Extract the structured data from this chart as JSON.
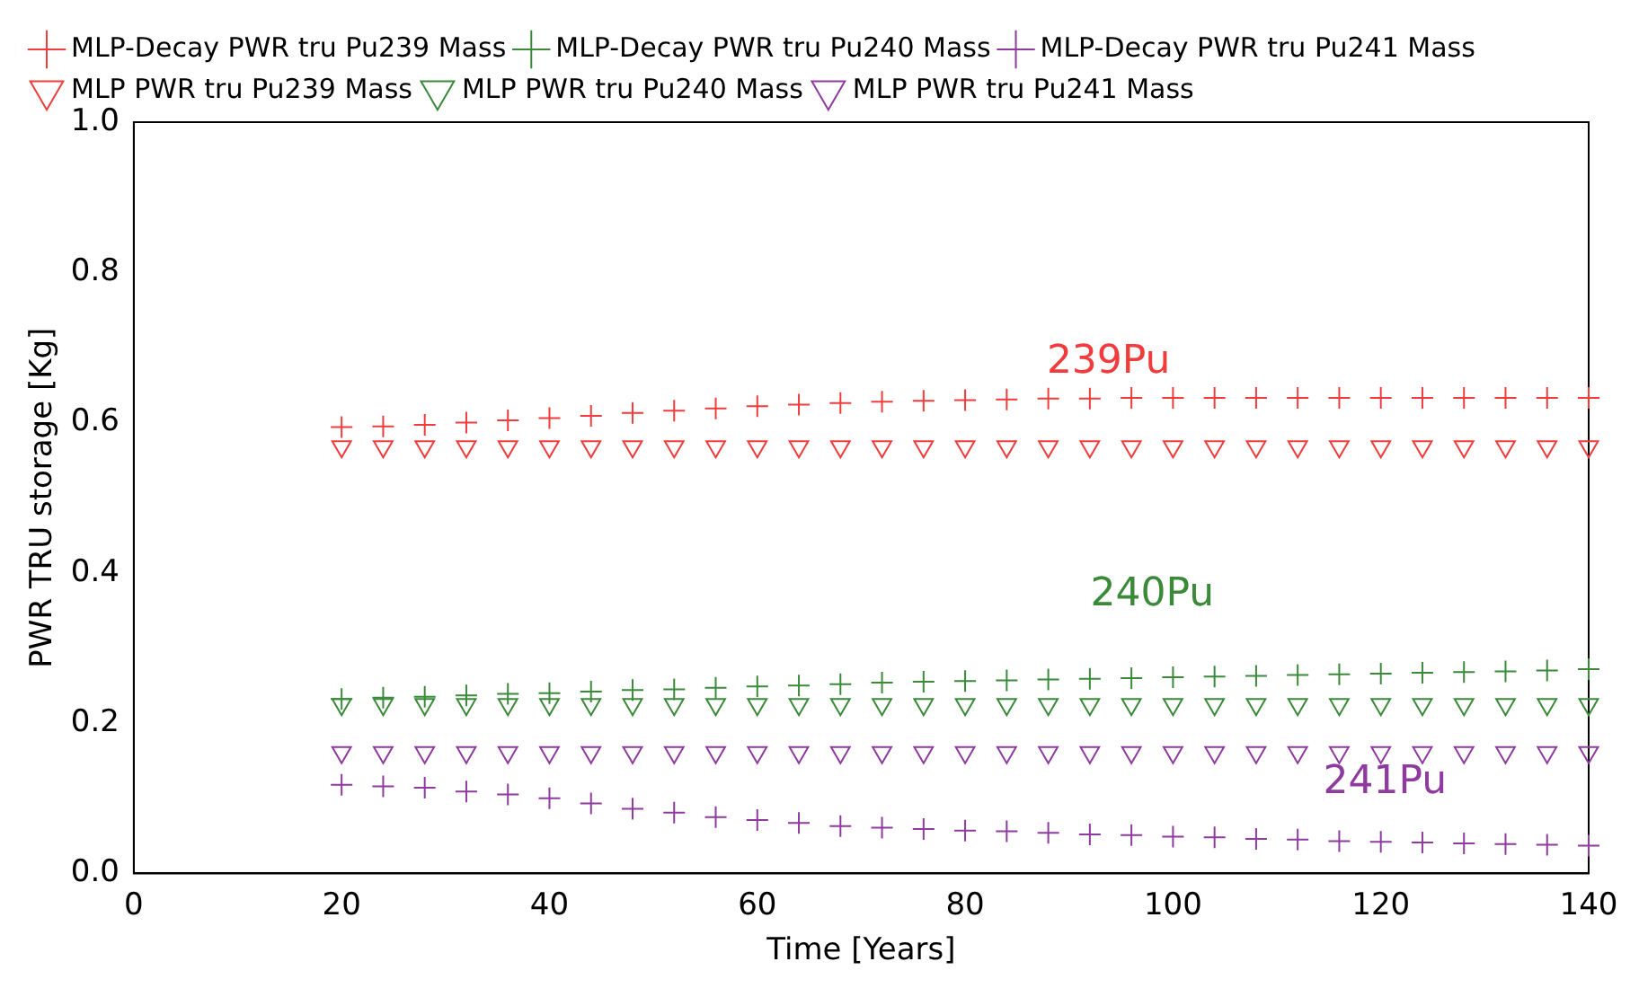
{
  "chart_data": {
    "type": "scatter",
    "xlabel": "Time [Years]",
    "ylabel": "PWR TRU storage [Kg]",
    "x": [
      20,
      24,
      28,
      32,
      36,
      40,
      44,
      48,
      52,
      56,
      60,
      64,
      68,
      72,
      76,
      80,
      84,
      88,
      92,
      96,
      100,
      104,
      108,
      112,
      116,
      120,
      124,
      128,
      132,
      136,
      140
    ],
    "xlim": [
      0,
      140
    ],
    "xticks": [
      0,
      20,
      40,
      60,
      80,
      100,
      120,
      140
    ],
    "ylim": [
      0,
      1.0
    ],
    "yticks": [
      {
        "value": 0,
        "label": "0.0"
      },
      0.2,
      0.4,
      0.6,
      0.8,
      {
        "value": 1,
        "label": "1.0"
      }
    ],
    "grid": false,
    "legend": "top left",
    "series": [
      {
        "name": "MLP-Decay PWR tru Pu239 Mass",
        "color": "#f03c3c",
        "marker": "cross",
        "values": [
          0.594,
          0.595,
          0.597,
          0.6,
          0.603,
          0.606,
          0.609,
          0.613,
          0.616,
          0.619,
          0.622,
          0.624,
          0.626,
          0.628,
          0.629,
          0.63,
          0.631,
          0.632,
          0.632,
          0.633,
          0.633,
          0.633,
          0.633,
          0.633,
          0.633,
          0.633,
          0.633,
          0.633,
          0.633,
          0.633,
          0.633
        ]
      },
      {
        "name": "MLP-Decay PWR tru Pu240 Mass",
        "color": "#3a8a3a",
        "marker": "cross",
        "values": [
          0.232,
          0.234,
          0.235,
          0.237,
          0.239,
          0.24,
          0.242,
          0.244,
          0.245,
          0.247,
          0.249,
          0.25,
          0.252,
          0.254,
          0.255,
          0.256,
          0.257,
          0.258,
          0.259,
          0.26,
          0.261,
          0.262,
          0.263,
          0.264,
          0.265,
          0.266,
          0.267,
          0.268,
          0.269,
          0.27,
          0.272
        ]
      },
      {
        "name": "MLP-Decay PWR tru Pu241 Mass",
        "color": "#8e3a9e",
        "marker": "cross",
        "values": [
          0.118,
          0.116,
          0.114,
          0.109,
          0.105,
          0.1,
          0.093,
          0.086,
          0.081,
          0.075,
          0.071,
          0.067,
          0.063,
          0.061,
          0.059,
          0.057,
          0.056,
          0.054,
          0.052,
          0.051,
          0.049,
          0.048,
          0.046,
          0.045,
          0.043,
          0.042,
          0.041,
          0.04,
          0.039,
          0.038,
          0.037
        ]
      },
      {
        "name": "MLP PWR tru Pu239 Mass",
        "color": "#f03c3c",
        "marker": "triangle",
        "values": [
          0.568,
          0.568,
          0.568,
          0.568,
          0.568,
          0.568,
          0.568,
          0.568,
          0.568,
          0.568,
          0.568,
          0.568,
          0.568,
          0.568,
          0.568,
          0.568,
          0.568,
          0.568,
          0.568,
          0.568,
          0.568,
          0.568,
          0.568,
          0.568,
          0.568,
          0.568,
          0.568,
          0.568,
          0.568,
          0.568,
          0.568
        ]
      },
      {
        "name": "MLP PWR tru Pu240 Mass",
        "color": "#3a8a3a",
        "marker": "triangle",
        "values": [
          0.225,
          0.225,
          0.225,
          0.225,
          0.225,
          0.225,
          0.225,
          0.225,
          0.225,
          0.225,
          0.225,
          0.225,
          0.225,
          0.225,
          0.225,
          0.225,
          0.225,
          0.225,
          0.225,
          0.225,
          0.225,
          0.225,
          0.225,
          0.225,
          0.225,
          0.225,
          0.225,
          0.225,
          0.225,
          0.225,
          0.225
        ]
      },
      {
        "name": "MLP PWR tru Pu241 Mass",
        "color": "#8e3a9e",
        "marker": "triangle",
        "values": [
          0.161,
          0.161,
          0.161,
          0.161,
          0.161,
          0.161,
          0.161,
          0.161,
          0.161,
          0.161,
          0.161,
          0.161,
          0.161,
          0.161,
          0.161,
          0.161,
          0.161,
          0.161,
          0.161,
          0.161,
          0.161,
          0.161,
          0.161,
          0.161,
          0.161,
          0.161,
          0.161,
          0.161,
          0.161,
          0.161,
          0.161
        ]
      }
    ],
    "annotations": [
      "239Pu",
      "240Pu",
      "241Pu"
    ]
  }
}
